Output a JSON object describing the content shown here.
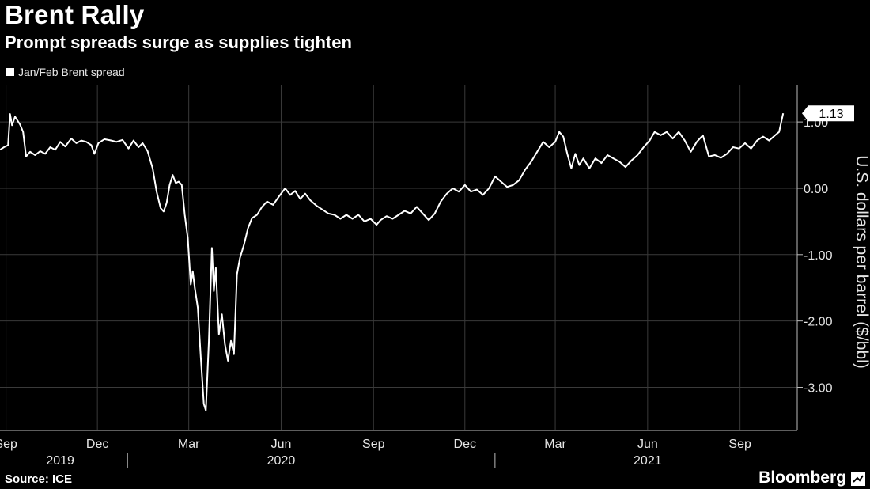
{
  "title": "Brent Rally",
  "subtitle": "Prompt spreads surge as supplies tighten",
  "source": "Source: ICE",
  "brand": "Bloomberg",
  "colors": {
    "background": "#000000",
    "line": "#ffffff",
    "grid": "#3a3a3a",
    "text": "#e6e6e6"
  },
  "chart_data": {
    "type": "line",
    "title": "Brent Rally",
    "subtitle": "Prompt spreads surge as supplies tighten",
    "ylabel": "U.S. dollars per barrel ($/bbl)",
    "ylim": [
      -3.65,
      1.55
    ],
    "yticks": [
      1.0,
      0.0,
      -1.0,
      -2.0,
      -3.0
    ],
    "ytick_labels": [
      "1.00",
      "0.00",
      "-1.00",
      "-2.00",
      "-3.00"
    ],
    "xlim": [
      "2019-08-26",
      "2021-10-28"
    ],
    "xticks": [
      {
        "date": "2019-09-01",
        "label": "Sep"
      },
      {
        "date": "2019-12-01",
        "label": "Dec"
      },
      {
        "date": "2020-03-01",
        "label": "Mar"
      },
      {
        "date": "2020-06-01",
        "label": "Jun"
      },
      {
        "date": "2020-09-01",
        "label": "Sep"
      },
      {
        "date": "2020-12-01",
        "label": "Dec"
      },
      {
        "date": "2021-03-01",
        "label": "Mar"
      },
      {
        "date": "2021-06-01",
        "label": "Jun"
      },
      {
        "date": "2021-09-01",
        "label": "Sep"
      }
    ],
    "years": [
      {
        "label": "2019",
        "date": "2019-10-25"
      },
      {
        "label": "2020",
        "date": "2020-06-01"
      },
      {
        "label": "2021",
        "date": "2021-06-01"
      }
    ],
    "year_dividers": [
      "2019-12-31",
      "2020-12-31"
    ],
    "grid": true,
    "legend": "top-left",
    "last_value_label": "1.13",
    "series": [
      {
        "name": "Jan/Feb Brent spread",
        "points": [
          [
            "2019-08-26",
            0.58
          ],
          [
            "2019-08-30",
            0.62
          ],
          [
            "2019-09-03",
            0.65
          ],
          [
            "2019-09-05",
            1.12
          ],
          [
            "2019-09-07",
            0.95
          ],
          [
            "2019-09-10",
            1.08
          ],
          [
            "2019-09-15",
            0.96
          ],
          [
            "2019-09-18",
            0.85
          ],
          [
            "2019-09-21",
            0.48
          ],
          [
            "2019-09-25",
            0.55
          ],
          [
            "2019-09-30",
            0.5
          ],
          [
            "2019-10-05",
            0.56
          ],
          [
            "2019-10-10",
            0.52
          ],
          [
            "2019-10-15",
            0.62
          ],
          [
            "2019-10-20",
            0.58
          ],
          [
            "2019-10-25",
            0.7
          ],
          [
            "2019-10-30",
            0.63
          ],
          [
            "2019-11-05",
            0.75
          ],
          [
            "2019-11-10",
            0.68
          ],
          [
            "2019-11-15",
            0.72
          ],
          [
            "2019-11-20",
            0.7
          ],
          [
            "2019-11-25",
            0.65
          ],
          [
            "2019-11-28",
            0.52
          ],
          [
            "2019-12-02",
            0.68
          ],
          [
            "2019-12-08",
            0.74
          ],
          [
            "2019-12-15",
            0.72
          ],
          [
            "2019-12-20",
            0.7
          ],
          [
            "2019-12-26",
            0.73
          ],
          [
            "2020-01-01",
            0.6
          ],
          [
            "2020-01-06",
            0.72
          ],
          [
            "2020-01-11",
            0.62
          ],
          [
            "2020-01-15",
            0.68
          ],
          [
            "2020-01-20",
            0.56
          ],
          [
            "2020-01-25",
            0.3
          ],
          [
            "2020-01-29",
            -0.05
          ],
          [
            "2020-02-02",
            -0.3
          ],
          [
            "2020-02-05",
            -0.35
          ],
          [
            "2020-02-08",
            -0.22
          ],
          [
            "2020-02-11",
            0.05
          ],
          [
            "2020-02-14",
            0.2
          ],
          [
            "2020-02-17",
            0.08
          ],
          [
            "2020-02-20",
            0.1
          ],
          [
            "2020-02-23",
            0.05
          ],
          [
            "2020-02-26",
            -0.4
          ],
          [
            "2020-02-29",
            -0.75
          ],
          [
            "2020-03-03",
            -1.45
          ],
          [
            "2020-03-05",
            -1.25
          ],
          [
            "2020-03-07",
            -1.5
          ],
          [
            "2020-03-10",
            -1.8
          ],
          [
            "2020-03-13",
            -2.55
          ],
          [
            "2020-03-16",
            -3.25
          ],
          [
            "2020-03-18",
            -3.35
          ],
          [
            "2020-03-21",
            -2.3
          ],
          [
            "2020-03-24",
            -0.9
          ],
          [
            "2020-03-26",
            -1.55
          ],
          [
            "2020-03-28",
            -1.2
          ],
          [
            "2020-03-31",
            -2.2
          ],
          [
            "2020-04-03",
            -1.9
          ],
          [
            "2020-04-06",
            -2.35
          ],
          [
            "2020-04-09",
            -2.6
          ],
          [
            "2020-04-12",
            -2.3
          ],
          [
            "2020-04-15",
            -2.5
          ],
          [
            "2020-04-18",
            -1.3
          ],
          [
            "2020-04-21",
            -1.05
          ],
          [
            "2020-04-25",
            -0.85
          ],
          [
            "2020-04-29",
            -0.6
          ],
          [
            "2020-05-03",
            -0.45
          ],
          [
            "2020-05-08",
            -0.4
          ],
          [
            "2020-05-13",
            -0.28
          ],
          [
            "2020-05-18",
            -0.2
          ],
          [
            "2020-05-24",
            -0.25
          ],
          [
            "2020-05-30",
            -0.12
          ],
          [
            "2020-06-05",
            0.0
          ],
          [
            "2020-06-10",
            -0.1
          ],
          [
            "2020-06-15",
            -0.04
          ],
          [
            "2020-06-20",
            -0.16
          ],
          [
            "2020-06-25",
            -0.08
          ],
          [
            "2020-06-30",
            -0.18
          ],
          [
            "2020-07-06",
            -0.26
          ],
          [
            "2020-07-12",
            -0.32
          ],
          [
            "2020-07-18",
            -0.38
          ],
          [
            "2020-07-24",
            -0.4
          ],
          [
            "2020-07-30",
            -0.46
          ],
          [
            "2020-08-05",
            -0.4
          ],
          [
            "2020-08-11",
            -0.46
          ],
          [
            "2020-08-17",
            -0.4
          ],
          [
            "2020-08-23",
            -0.5
          ],
          [
            "2020-08-29",
            -0.46
          ],
          [
            "2020-09-04",
            -0.55
          ],
          [
            "2020-09-08",
            -0.48
          ],
          [
            "2020-09-14",
            -0.42
          ],
          [
            "2020-09-20",
            -0.46
          ],
          [
            "2020-09-26",
            -0.4
          ],
          [
            "2020-10-02",
            -0.34
          ],
          [
            "2020-10-08",
            -0.38
          ],
          [
            "2020-10-14",
            -0.28
          ],
          [
            "2020-10-20",
            -0.38
          ],
          [
            "2020-10-26",
            -0.48
          ],
          [
            "2020-11-01",
            -0.38
          ],
          [
            "2020-11-07",
            -0.2
          ],
          [
            "2020-11-13",
            -0.08
          ],
          [
            "2020-11-19",
            0.0
          ],
          [
            "2020-11-25",
            -0.05
          ],
          [
            "2020-12-01",
            0.05
          ],
          [
            "2020-12-07",
            -0.05
          ],
          [
            "2020-12-13",
            -0.02
          ],
          [
            "2020-12-19",
            -0.1
          ],
          [
            "2020-12-25",
            0.0
          ],
          [
            "2020-12-31",
            0.18
          ],
          [
            "2021-01-06",
            0.1
          ],
          [
            "2021-01-12",
            0.02
          ],
          [
            "2021-01-18",
            0.05
          ],
          [
            "2021-01-24",
            0.12
          ],
          [
            "2021-01-30",
            0.28
          ],
          [
            "2021-02-05",
            0.4
          ],
          [
            "2021-02-11",
            0.55
          ],
          [
            "2021-02-17",
            0.7
          ],
          [
            "2021-02-23",
            0.62
          ],
          [
            "2021-03-01",
            0.7
          ],
          [
            "2021-03-05",
            0.85
          ],
          [
            "2021-03-09",
            0.78
          ],
          [
            "2021-03-13",
            0.52
          ],
          [
            "2021-03-17",
            0.3
          ],
          [
            "2021-03-21",
            0.52
          ],
          [
            "2021-03-25",
            0.35
          ],
          [
            "2021-03-29",
            0.45
          ],
          [
            "2021-04-04",
            0.3
          ],
          [
            "2021-04-10",
            0.45
          ],
          [
            "2021-04-16",
            0.38
          ],
          [
            "2021-04-22",
            0.5
          ],
          [
            "2021-04-28",
            0.45
          ],
          [
            "2021-05-04",
            0.4
          ],
          [
            "2021-05-10",
            0.32
          ],
          [
            "2021-05-16",
            0.42
          ],
          [
            "2021-05-22",
            0.5
          ],
          [
            "2021-05-28",
            0.62
          ],
          [
            "2021-06-03",
            0.72
          ],
          [
            "2021-06-08",
            0.85
          ],
          [
            "2021-06-14",
            0.8
          ],
          [
            "2021-06-20",
            0.85
          ],
          [
            "2021-06-26",
            0.75
          ],
          [
            "2021-07-02",
            0.85
          ],
          [
            "2021-07-08",
            0.72
          ],
          [
            "2021-07-14",
            0.55
          ],
          [
            "2021-07-20",
            0.7
          ],
          [
            "2021-07-26",
            0.8
          ],
          [
            "2021-08-01",
            0.48
          ],
          [
            "2021-08-07",
            0.5
          ],
          [
            "2021-08-13",
            0.46
          ],
          [
            "2021-08-19",
            0.52
          ],
          [
            "2021-08-25",
            0.62
          ],
          [
            "2021-08-31",
            0.6
          ],
          [
            "2021-09-06",
            0.68
          ],
          [
            "2021-09-12",
            0.6
          ],
          [
            "2021-09-18",
            0.72
          ],
          [
            "2021-09-24",
            0.78
          ],
          [
            "2021-09-30",
            0.72
          ],
          [
            "2021-10-06",
            0.8
          ],
          [
            "2021-10-10",
            0.85
          ],
          [
            "2021-10-14",
            1.13
          ]
        ]
      }
    ]
  }
}
